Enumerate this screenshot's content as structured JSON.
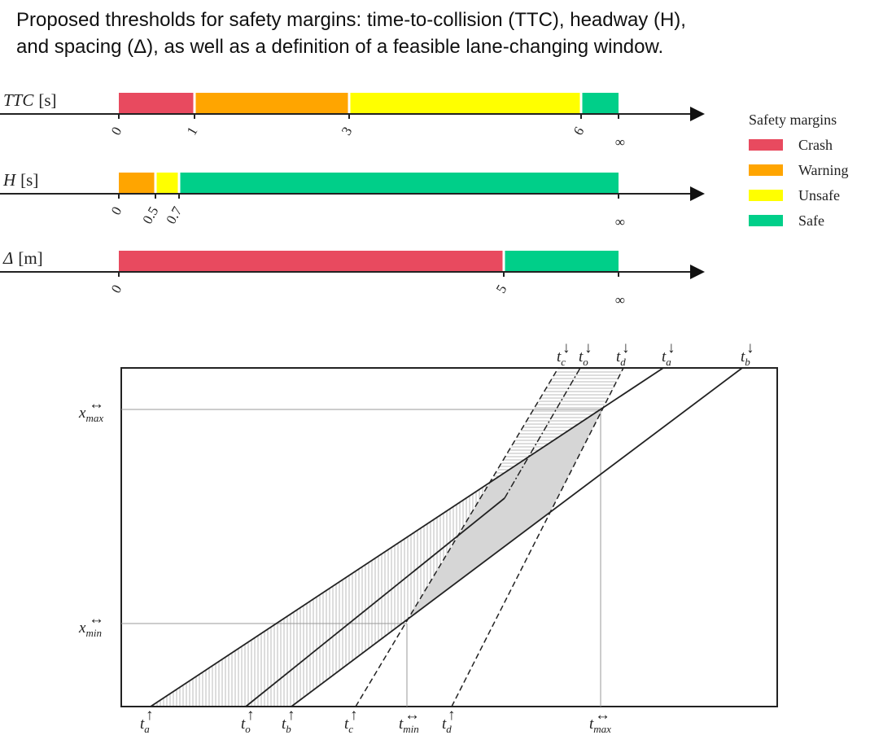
{
  "caption": {
    "line1": "Proposed thresholds for safety margins: time-to-collision (TTC), headway (H),",
    "line2": "and spacing (Δ), as well as a definition of a feasible lane-changing window."
  },
  "colors": {
    "crash": "#e84a5f",
    "warning": "#ffa500",
    "unsafe": "#ffff00",
    "safe": "#00cf89"
  },
  "axes": [
    {
      "id": "ttc",
      "var": "TTC",
      "unit": "[s]",
      "ticks": [
        "0",
        "1",
        "3",
        "6",
        "∞"
      ],
      "segments": [
        {
          "from": 0,
          "to": 1,
          "class": "crash"
        },
        {
          "from": 1,
          "to": 2,
          "class": "warning"
        },
        {
          "from": 2,
          "to": 3,
          "class": "unsafe"
        },
        {
          "from": 3,
          "to": 4,
          "class": "safe"
        }
      ]
    },
    {
      "id": "h",
      "var": "H",
      "unit": "[s]",
      "ticks": [
        "0",
        "0.5",
        "0.7",
        "∞"
      ],
      "segments": [
        {
          "from": 0,
          "to": 1,
          "class": "warning"
        },
        {
          "from": 1,
          "to": 2,
          "class": "unsafe"
        },
        {
          "from": 2,
          "to": 3,
          "class": "safe"
        }
      ]
    },
    {
      "id": "delta",
      "var": "Δ",
      "unit": "[m]",
      "ticks": [
        "0",
        "5",
        "∞"
      ],
      "segments": [
        {
          "from": 0,
          "to": 1,
          "class": "crash"
        },
        {
          "from": 1,
          "to": 2,
          "class": "safe"
        }
      ]
    }
  ],
  "legend": {
    "title": "Safety margins",
    "items": [
      {
        "label": "Crash",
        "class": "crash"
      },
      {
        "label": "Warning",
        "class": "warning"
      },
      {
        "label": "Unsafe",
        "class": "unsafe"
      },
      {
        "label": "Safe",
        "class": "safe"
      }
    ]
  },
  "window": {
    "top_labels": [
      {
        "base": "t",
        "sub": "c",
        "sup": "↓"
      },
      {
        "base": "t",
        "sub": "o",
        "sup": "↓"
      },
      {
        "base": "t",
        "sub": "d",
        "sup": "↓"
      },
      {
        "base": "t",
        "sub": "a",
        "sup": "↓"
      },
      {
        "base": "t",
        "sub": "b",
        "sup": "↓"
      }
    ],
    "bottom_labels": [
      {
        "base": "t",
        "sub": "a",
        "sup": "↑"
      },
      {
        "base": "t",
        "sub": "o",
        "sup": "↑"
      },
      {
        "base": "t",
        "sub": "b",
        "sup": "↑"
      },
      {
        "base": "t",
        "sub": "c",
        "sup": "↑"
      },
      {
        "base": "t",
        "sub": "min",
        "sup": "↔"
      },
      {
        "base": "t",
        "sub": "d",
        "sup": "↑"
      },
      {
        "base": "t",
        "sub": "max",
        "sup": "↔"
      }
    ],
    "left_labels": [
      {
        "base": "x",
        "sub": "max",
        "sup": "↔"
      },
      {
        "base": "x",
        "sub": "min",
        "sup": "↔"
      }
    ]
  }
}
